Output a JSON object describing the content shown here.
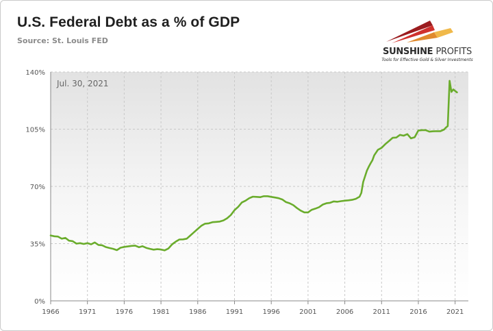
{
  "header": {
    "title": "U.S. Federal Debt as a % of GDP",
    "source": "Source: St. Louis FED"
  },
  "logo": {
    "name_bold": "SUNSHINE",
    "name_light": "PROFITS",
    "tagline": "Tools for Effective Gold & Silver Investments",
    "colors": [
      "#9b1c1f",
      "#d0312d",
      "#e08a2e",
      "#f0b94a"
    ]
  },
  "colors": {
    "line": "#6aac2c",
    "grid": "#c8c8c8",
    "axis": "#888888"
  },
  "chart_data": {
    "type": "line",
    "title": "U.S. Federal Debt as a % of GDP",
    "annotation": "Jul. 30, 2021",
    "xlabel": "",
    "ylabel": "",
    "xlim": [
      1966,
      2022.8
    ],
    "ylim": [
      0,
      140
    ],
    "x_ticks": [
      "1966",
      "1971",
      "1976",
      "1981",
      "1986",
      "1991",
      "1996",
      "2001",
      "2006",
      "2011",
      "2016",
      "2021"
    ],
    "y_ticks": [
      "0%",
      "35%",
      "70%",
      "105%",
      "140%"
    ],
    "series": [
      {
        "name": "Federal Debt % of GDP",
        "x": [
          1966.0,
          1966.5,
          1967.0,
          1967.5,
          1968.0,
          1968.5,
          1969.0,
          1969.5,
          1970.0,
          1970.5,
          1971.0,
          1971.5,
          1972.0,
          1972.5,
          1973.0,
          1973.5,
          1974.0,
          1974.5,
          1975.0,
          1975.5,
          1976.0,
          1976.5,
          1977.0,
          1977.5,
          1978.0,
          1978.5,
          1979.0,
          1979.5,
          1980.0,
          1980.5,
          1981.0,
          1981.5,
          1982.0,
          1982.5,
          1983.0,
          1983.5,
          1984.0,
          1984.5,
          1985.0,
          1985.5,
          1986.0,
          1986.5,
          1987.0,
          1987.5,
          1988.0,
          1988.5,
          1989.0,
          1989.5,
          1990.0,
          1990.5,
          1991.0,
          1991.5,
          1992.0,
          1992.5,
          1993.0,
          1993.5,
          1994.0,
          1994.5,
          1995.0,
          1995.5,
          1996.0,
          1996.5,
          1997.0,
          1997.5,
          1998.0,
          1998.5,
          1999.0,
          1999.5,
          2000.0,
          2000.5,
          2001.0,
          2001.5,
          2002.0,
          2002.5,
          2003.0,
          2003.5,
          2004.0,
          2004.5,
          2005.0,
          2005.5,
          2006.0,
          2006.5,
          2007.0,
          2007.5,
          2008.0,
          2008.25,
          2008.5,
          2008.75,
          2009.0,
          2009.25,
          2009.5,
          2009.75,
          2010.0,
          2010.5,
          2011.0,
          2011.5,
          2012.0,
          2012.5,
          2013.0,
          2013.5,
          2014.0,
          2014.5,
          2015.0,
          2015.5,
          2016.0,
          2016.5,
          2017.0,
          2017.5,
          2018.0,
          2018.5,
          2019.0,
          2019.5,
          2019.75,
          2020.0,
          2020.25,
          2020.5,
          2020.75,
          2021.0,
          2021.25
        ],
        "values": [
          40.0,
          39.5,
          39.3,
          38.0,
          38.5,
          36.8,
          36.5,
          35.0,
          35.3,
          34.8,
          35.3,
          34.6,
          35.7,
          34.2,
          34.0,
          32.9,
          32.3,
          31.8,
          31.0,
          32.5,
          33.0,
          33.3,
          33.6,
          33.8,
          32.8,
          33.4,
          32.4,
          31.8,
          31.3,
          31.6,
          31.4,
          30.9,
          32.0,
          34.5,
          36.2,
          37.5,
          37.6,
          38.0,
          40.0,
          42.0,
          44.0,
          46.0,
          47.2,
          47.4,
          48.1,
          48.3,
          48.5,
          49.2,
          50.5,
          52.5,
          55.5,
          57.5,
          60.2,
          61.3,
          62.8,
          63.7,
          63.6,
          63.4,
          64.0,
          64.0,
          63.6,
          63.2,
          62.8,
          62.0,
          60.4,
          59.7,
          58.5,
          56.7,
          55.2,
          54.1,
          54.1,
          55.7,
          56.4,
          57.3,
          58.9,
          59.7,
          60.0,
          60.8,
          60.6,
          61.0,
          61.3,
          61.5,
          61.8,
          62.4,
          63.7,
          66.0,
          72.7,
          76.1,
          79.6,
          82.0,
          84.1,
          86.0,
          89.0,
          92.4,
          93.6,
          95.8,
          97.7,
          99.7,
          99.9,
          101.5,
          101.0,
          102.0,
          99.4,
          100.1,
          104.2,
          104.4,
          104.4,
          103.5,
          103.7,
          103.8,
          103.8,
          104.8,
          106.0,
          106.9,
          134.6,
          127.8,
          129.3,
          128.4,
          127.5
        ]
      }
    ]
  }
}
